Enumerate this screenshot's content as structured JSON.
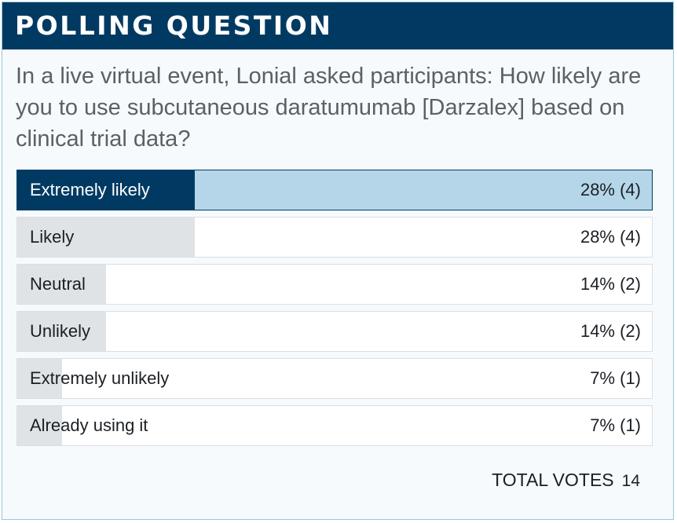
{
  "header": {
    "title": "POLLING QUESTION"
  },
  "question": "In a live virtual event, Lonial asked participants: How likely are you to use subcutaneous daratumumab [Darzalex] based on clinical trial data?",
  "colors": {
    "header_bg": "#003a63",
    "selected_bar": "#003a63",
    "selected_row_bg": "#b4d6e8",
    "bar_fill": "#e0e3e6",
    "border": "#9ac6dc"
  },
  "chart_data": {
    "type": "bar",
    "orientation": "horizontal",
    "categories": [
      "Extremely likely",
      "Likely",
      "Neutral",
      "Unlikely",
      "Extremely unlikely",
      "Already using it"
    ],
    "values": [
      28,
      28,
      14,
      14,
      7,
      7
    ],
    "counts": [
      4,
      4,
      2,
      2,
      1,
      1
    ],
    "labels": [
      "28% (4)",
      "28% (4)",
      "14% (2)",
      "14% (2)",
      "7% (1)",
      "7% (1)"
    ],
    "selected_index": 0,
    "unit": "%",
    "xlim": [
      0,
      100
    ]
  },
  "total": {
    "label": "TOTAL VOTES",
    "value": "14"
  }
}
